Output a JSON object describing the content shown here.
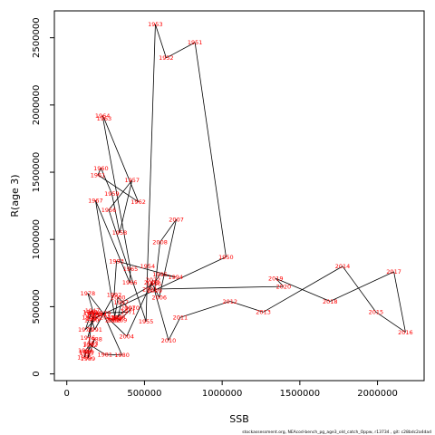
{
  "chart_data": {
    "type": "scatter",
    "connected": true,
    "xlabel": "SSB",
    "ylabel": "R(age 3)",
    "xlim": [
      -80000,
      2300000
    ],
    "ylim": [
      -50000,
      2700000
    ],
    "x_ticks": [
      0,
      500000,
      1000000,
      1500000,
      2000000
    ],
    "y_ticks": [
      0,
      500000,
      1000000,
      1500000,
      2000000,
      2500000
    ],
    "x_tick_labels": [
      "0",
      "500000",
      "1000000",
      "1500000",
      "2000000"
    ],
    "y_tick_labels": [
      "0",
      "500000",
      "1000000",
      "1500000",
      "2000000",
      "2500000"
    ],
    "footer": "stockassessment.org, NEAcod-bench_pg_age3_old_catch_Oppw, r13734 , git: c28bdc2a4dad",
    "label_color": "#ff0000",
    "line_color": "#000000",
    "points": [
      {
        "year": "1946",
        "x": 145000,
        "y": 420000
      },
      {
        "year": "1947",
        "x": 165000,
        "y": 470000
      },
      {
        "year": "1948",
        "x": 150000,
        "y": 460000
      },
      {
        "year": "1949",
        "x": 170000,
        "y": 410000
      },
      {
        "year": "1950",
        "x": 1025000,
        "y": 870000
      },
      {
        "year": "1951",
        "x": 825000,
        "y": 2465000
      },
      {
        "year": "1952",
        "x": 640000,
        "y": 2350000
      },
      {
        "year": "1953",
        "x": 570000,
        "y": 2600000
      },
      {
        "year": "1954",
        "x": 520000,
        "y": 800000
      },
      {
        "year": "1955",
        "x": 510000,
        "y": 390000
      },
      {
        "year": "1956",
        "x": 270000,
        "y": 1220000
      },
      {
        "year": "1957",
        "x": 420000,
        "y": 1440000
      },
      {
        "year": "1958",
        "x": 340000,
        "y": 1050000
      },
      {
        "year": "1959",
        "x": 290000,
        "y": 1340000
      },
      {
        "year": "1960",
        "x": 220000,
        "y": 1530000
      },
      {
        "year": "1961",
        "x": 200000,
        "y": 1480000
      },
      {
        "year": "1962",
        "x": 460000,
        "y": 1280000
      },
      {
        "year": "1963",
        "x": 240000,
        "y": 1900000
      },
      {
        "year": "1964",
        "x": 230000,
        "y": 1920000
      },
      {
        "year": "1965",
        "x": 410000,
        "y": 780000
      },
      {
        "year": "1966",
        "x": 405000,
        "y": 680000
      },
      {
        "year": "1967",
        "x": 185000,
        "y": 1290000
      },
      {
        "year": "1968",
        "x": 310000,
        "y": 420000
      },
      {
        "year": "1969",
        "x": 340000,
        "y": 400000
      },
      {
        "year": "1970",
        "x": 420000,
        "y": 490000
      },
      {
        "year": "1971",
        "x": 395000,
        "y": 460000
      },
      {
        "year": "1972",
        "x": 155000,
        "y": 450000
      },
      {
        "year": "1973",
        "x": 120000,
        "y": 330000
      },
      {
        "year": "1974",
        "x": 210000,
        "y": 440000
      },
      {
        "year": "1975",
        "x": 180000,
        "y": 450000
      },
      {
        "year": "1976",
        "x": 135000,
        "y": 270000
      },
      {
        "year": "1977",
        "x": 175000,
        "y": 440000
      },
      {
        "year": "1978",
        "x": 135000,
        "y": 600000
      },
      {
        "year": "1979",
        "x": 235000,
        "y": 450000
      },
      {
        "year": "1980",
        "x": 355000,
        "y": 140000
      },
      {
        "year": "1981",
        "x": 245000,
        "y": 145000
      },
      {
        "year": "1982",
        "x": 150000,
        "y": 215000
      },
      {
        "year": "1983",
        "x": 155000,
        "y": 225000
      },
      {
        "year": "1984",
        "x": 120000,
        "y": 175000
      },
      {
        "year": "1985",
        "x": 115000,
        "y": 125000
      },
      {
        "year": "1986",
        "x": 125000,
        "y": 165000
      },
      {
        "year": "1987",
        "x": 130000,
        "y": 155000
      },
      {
        "year": "1988",
        "x": 180000,
        "y": 260000
      },
      {
        "year": "1989",
        "x": 135000,
        "y": 115000
      },
      {
        "year": "1990",
        "x": 160000,
        "y": 400000
      },
      {
        "year": "1991",
        "x": 180000,
        "y": 330000
      },
      {
        "year": "1992",
        "x": 305000,
        "y": 590000
      },
      {
        "year": "1993",
        "x": 320000,
        "y": 840000
      },
      {
        "year": "1994",
        "x": 700000,
        "y": 720000
      },
      {
        "year": "1995",
        "x": 600000,
        "y": 740000
      },
      {
        "year": "1996",
        "x": 560000,
        "y": 670000
      },
      {
        "year": "1997",
        "x": 350000,
        "y": 530000
      },
      {
        "year": "1998",
        "x": 330000,
        "y": 420000
      },
      {
        "year": "1999",
        "x": 305000,
        "y": 400000
      },
      {
        "year": "2000",
        "x": 330000,
        "y": 570000
      },
      {
        "year": "2001",
        "x": 395000,
        "y": 490000
      },
      {
        "year": "2002",
        "x": 295000,
        "y": 400000
      },
      {
        "year": "2003",
        "x": 260000,
        "y": 420000
      },
      {
        "year": "2004",
        "x": 385000,
        "y": 280000
      },
      {
        "year": "2005",
        "x": 545000,
        "y": 680000
      },
      {
        "year": "2006",
        "x": 595000,
        "y": 570000
      },
      {
        "year": "2007",
        "x": 705000,
        "y": 1150000
      },
      {
        "year": "2008",
        "x": 600000,
        "y": 980000
      },
      {
        "year": "2009",
        "x": 565000,
        "y": 620000
      },
      {
        "year": "2010",
        "x": 655000,
        "y": 250000
      },
      {
        "year": "2011",
        "x": 730000,
        "y": 420000
      },
      {
        "year": "2012",
        "x": 1050000,
        "y": 540000
      },
      {
        "year": "2013",
        "x": 1265000,
        "y": 460000
      },
      {
        "year": "2014",
        "x": 1775000,
        "y": 800000
      },
      {
        "year": "2015",
        "x": 1990000,
        "y": 460000
      },
      {
        "year": "2016",
        "x": 2180000,
        "y": 310000
      },
      {
        "year": "2017",
        "x": 2105000,
        "y": 760000
      },
      {
        "year": "2018",
        "x": 1695000,
        "y": 540000
      },
      {
        "year": "2019",
        "x": 1345000,
        "y": 710000
      },
      {
        "year": "2020",
        "x": 1395000,
        "y": 650000
      },
      {
        "year": "2021",
        "x": 535000,
        "y": 630000
      },
      {
        "year": "2022",
        "x": 555000,
        "y": 700000
      }
    ]
  }
}
